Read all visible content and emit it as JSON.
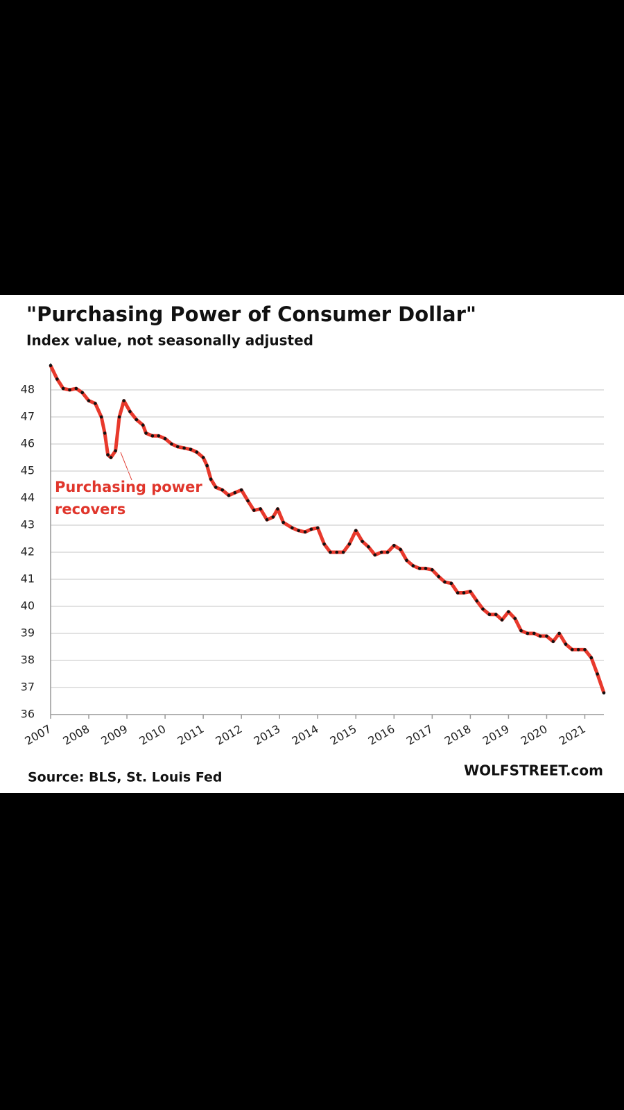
{
  "chart_data": {
    "type": "line",
    "title": "\"Purchasing  Power of Consumer Dollar\"",
    "subtitle": "Index value, not seasonally adjusted",
    "source": "Source: BLS, St. Louis Fed",
    "brand": "WOLFSTREET.com",
    "annotation": [
      "Purchasing power",
      "recovers"
    ],
    "annotation_color": "#e0352b",
    "color": "#e8392c",
    "marker_color": "#111111",
    "grid": true,
    "x": [
      2007.0,
      2007.17,
      2007.33,
      2007.5,
      2007.67,
      2007.83,
      2008.0,
      2008.17,
      2008.33,
      2008.42,
      2008.5,
      2008.58,
      2008.7,
      2008.8,
      2008.92,
      2009.08,
      2009.25,
      2009.42,
      2009.5,
      2009.67,
      2009.83,
      2010.0,
      2010.17,
      2010.33,
      2010.5,
      2010.67,
      2010.83,
      2011.0,
      2011.1,
      2011.2,
      2011.33,
      2011.5,
      2011.67,
      2011.83,
      2012.0,
      2012.17,
      2012.33,
      2012.5,
      2012.67,
      2012.83,
      2012.95,
      2013.1,
      2013.33,
      2013.5,
      2013.67,
      2013.83,
      2014.0,
      2014.17,
      2014.33,
      2014.5,
      2014.67,
      2014.83,
      2015.0,
      2015.17,
      2015.33,
      2015.5,
      2015.67,
      2015.83,
      2016.0,
      2016.17,
      2016.33,
      2016.5,
      2016.67,
      2016.83,
      2017.0,
      2017.17,
      2017.33,
      2017.5,
      2017.67,
      2017.83,
      2018.0,
      2018.17,
      2018.33,
      2018.5,
      2018.67,
      2018.83,
      2019.0,
      2019.17,
      2019.33,
      2019.5,
      2019.67,
      2019.83,
      2020.0,
      2020.17,
      2020.33,
      2020.5,
      2020.67,
      2020.83,
      2021.0,
      2021.17,
      2021.33,
      2021.5
    ],
    "values": [
      48.9,
      48.4,
      48.05,
      48.0,
      48.05,
      47.9,
      47.6,
      47.5,
      47.0,
      46.4,
      45.6,
      45.5,
      45.75,
      47.0,
      47.6,
      47.2,
      46.9,
      46.7,
      46.4,
      46.3,
      46.3,
      46.2,
      46.0,
      45.9,
      45.85,
      45.8,
      45.7,
      45.5,
      45.2,
      44.7,
      44.4,
      44.3,
      44.1,
      44.2,
      44.3,
      43.9,
      43.55,
      43.6,
      43.2,
      43.3,
      43.6,
      43.1,
      42.9,
      42.8,
      42.75,
      42.85,
      42.9,
      42.3,
      42.0,
      42.0,
      42.0,
      42.3,
      42.8,
      42.4,
      42.2,
      41.9,
      42.0,
      42.0,
      42.25,
      42.1,
      41.7,
      41.5,
      41.4,
      41.4,
      41.35,
      41.1,
      40.9,
      40.85,
      40.5,
      40.5,
      40.55,
      40.2,
      39.9,
      39.7,
      39.7,
      39.5,
      39.8,
      39.55,
      39.1,
      39.0,
      39.0,
      38.9,
      38.9,
      38.7,
      39.0,
      38.6,
      38.4,
      38.4,
      38.4,
      38.1,
      37.5,
      36.8
    ],
    "xlim": [
      2007,
      2021.5
    ],
    "xticks": [
      2007,
      2008,
      2009,
      2010,
      2011,
      2012,
      2013,
      2014,
      2015,
      2016,
      2017,
      2018,
      2019,
      2020,
      2021
    ],
    "ylim": [
      36,
      49
    ],
    "yticks": [
      36,
      37,
      38,
      39,
      40,
      41,
      42,
      43,
      44,
      45,
      46,
      47,
      48
    ]
  }
}
